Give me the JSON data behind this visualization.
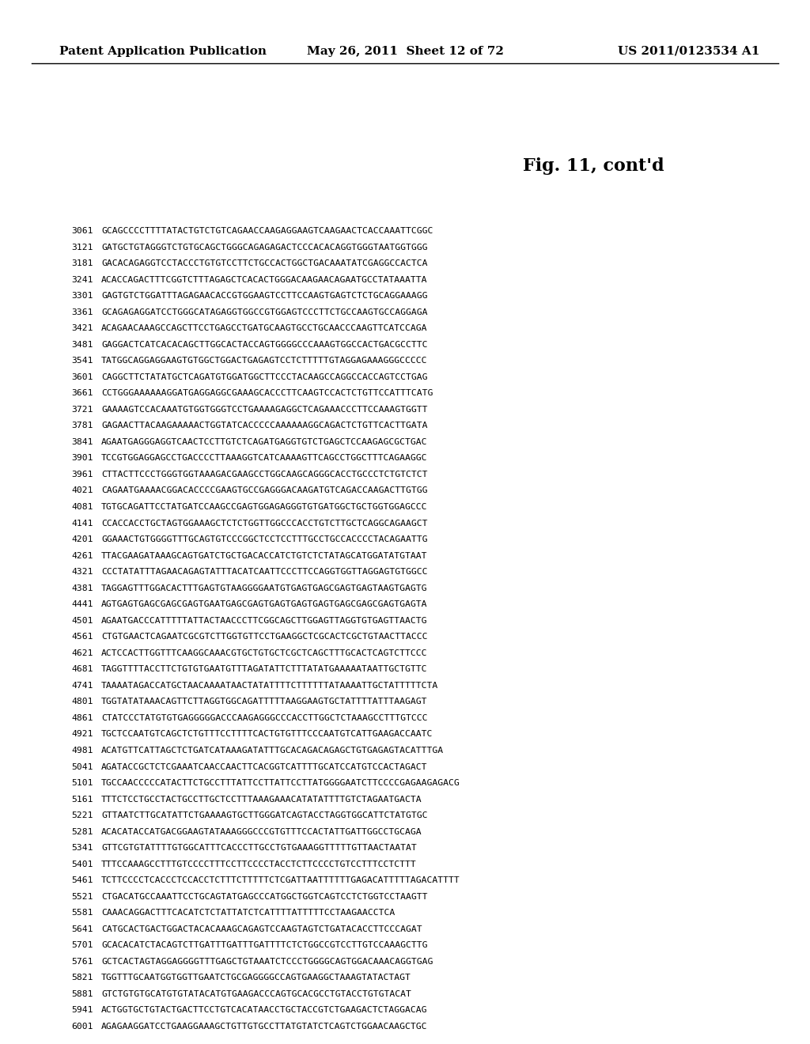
{
  "header_left": "Patent Application Publication",
  "header_center": "May 26, 2011  Sheet 12 of 72",
  "header_right": "US 2011/0123534 A1",
  "figure_title": "Fig. 11, cont'd",
  "background_color": "#ffffff",
  "header_fontsize": 11,
  "title_fontsize": 16,
  "sequence_fontsize": 8.2,
  "sequence_lines": [
    [
      "3061",
      "GCAGCCCCTTTTATACTGTCTGTCAGAACCAAGAGGAAGTCAAGAACTCACCAAATTCGGC"
    ],
    [
      "3121",
      "GATGCTGTAGGGTCTGTGCAGCTGGGCAGAGAGACTCCCACACAGGTGGGTAATGGTGGG"
    ],
    [
      "3181",
      "GACACAGAGGTCCTACCCTGTGTCCTTCTGCCACTGGCTGACAAATATCGAGGCCACTCA"
    ],
    [
      "3241",
      "ACACCAGACTTTCGGTCTTTAGAGCTCACACTGGGACAAGAACAGAATGCCTATAAATTA"
    ],
    [
      "3301",
      "GAGTGTCTGGATTTAGAGAACACCGTGGAAGTCCTTCCAAGTGAGTCTCTGCAGGAAAGG"
    ],
    [
      "3361",
      "GCAGAGAGGATCCTGGGCATAGAGGTGGCCGTGGAGTCCCTTCTGCCAAGTGCCAGGAGA"
    ],
    [
      "3421",
      "ACAGAACAAAGCCAGCTTCCTGAGCCTGATGCAAGTGCCTGCAACCCAAGTTCATCCAGA"
    ],
    [
      "3481",
      "GAGGACTCATCACACAGCTTGGCACTACCAGTGGGGCCCAAAGTGGCCACTGACGCCTTC"
    ],
    [
      "3541",
      "TATGGCAGGAGGAAGTGTGGCTGGACTGAGAGTCCTCTTTTTGTAGGAGAAAGGGCCCCC"
    ],
    [
      "3601",
      "CAGGCTTCTATATGCTCAGATGTGGATGGCTTCCCTACAAGCCAGGCCACCAGTCCTGAG"
    ],
    [
      "3661",
      "CCTGGGAAAAAAGGATGAGGAGGCGAAAGCACCCTTCAAGTCCACTCTGTTCCATTTCATG"
    ],
    [
      "3721",
      "GAAAAGTCCACAAATGTGGTGGGTCCTGAAAAGAGGCTCAGAAACCCTTCCAAAGTGGTT"
    ],
    [
      "3781",
      "GAGAACTTACAAGAAAAACTGGTATCACCCCCAAAAAAGGCAGACTCTGTTCACTTGATA"
    ],
    [
      "3841",
      "AGAATGAGGGAGGTCAACTCCTTGTCTCAGATGAGGTGTCTGAGCTCCAAGAGCGCTGAC"
    ],
    [
      "3901",
      "TCCGTGGAGGAGCCTGACCCCTTAAAGGTCATCAAAAGTTCAGCCTGGCTTTCAGAAGGC"
    ],
    [
      "3961",
      "CTTACTTCCCTGGGTGGTAAAGACGAAGCCTGGCAAGCAGGGCACCTGCCCTCTGTCTCT"
    ],
    [
      "4021",
      "CAGAATGAAAACGGACACCCCGAAGTGCCGAGGGACAAGATGTCAGACCAAGACTTGTGG"
    ],
    [
      "4081",
      "TGTGCAGATTCCTATGATCCAAGCCGAGTGGAGAGGGTGTGATGGCTGCTGGTGGAGCCC"
    ],
    [
      "4141",
      "CCACCACCTGCTAGTGGAAAGCTCTCTGGTTGGCCCACCTGTCTTGCTCAGGCAGAAGCT"
    ],
    [
      "4201",
      "GGAAACTGTGGGGTTTGCAGTGTCCCGGCTCCTCCTTTGCCTGCCACCCCTACAGAATTG"
    ],
    [
      "4261",
      "TTACGAAGATAAAGCAGTGATCTGCTGACACCATCTGTCTCTATAGCATGGATATGTAAT"
    ],
    [
      "4321",
      "CCCTATATTTAGAACAGAGTATTTACATCAATTCCCTTCCAGGTGGTTAGGAGTGTGGCC"
    ],
    [
      "4381",
      "TAGGAGTTTGGACACTTTGAGTGTAAGGGGAATGTGAGTGAGCGAGTGAGTAAGTGAGTG"
    ],
    [
      "4441",
      "AGTGAGTGAGCGAGCGAGTGAATGAGCGAGTGAGTGAGTGAGTGAGCGAGCGAGTGAGTA"
    ],
    [
      "4501",
      "AGAATGACCCATTTTTATTACTAACCCTTCGGCAGCTTGGAGTTAGGTGTGAGTTAACTG"
    ],
    [
      "4561",
      "CTGTGAACTCAGAATCGCGTCTTGGTGTTCCTGAAGGCTCGCACTCGCTGTAACTTACCC"
    ],
    [
      "4621",
      "ACTCCACTTGGTTTCAAGGCAAACGTGCTGTGCTCGCTCAGCTTTGCACTCAGTCTTCCC"
    ],
    [
      "4681",
      "TAGGTTTTACCTTCTGTGTGAATGTTTAGATATTCTTTATATGAAAAATAATTGCTGTTC"
    ],
    [
      "4741",
      "TAAAATAGACCATGCTAACAAAATAACTATATTTTCTTTTTTATAAAATTGCTATTTTTCTA"
    ],
    [
      "4801",
      "TGGTATATAAACAGTTCTTAGGTGGCAGATTTTTAAGGAAGTGCTATTTTATTTAAGAGT"
    ],
    [
      "4861",
      "CTATCCCTATGTGTGAGGGGGACCCAAGAGGGCCCACCTTGGCTCTAAAGCCTTTGTCCC"
    ],
    [
      "4921",
      "TGCTCCAATGTCAGCTCTGTTTCCTTTTCACTGTGTTTCCCAATGTCATTGAAGACCAATC"
    ],
    [
      "4981",
      "ACATGTTCATTAGCTCTGATCATAAAGATATTTGCACAGACAGAGCTGTGAGAGTACATTTGA"
    ],
    [
      "5041",
      "AGATACCGCTCTCGAAATCAACCAACTTCACGGTCATTTTGCATCCATGTCCACTAGACT"
    ],
    [
      "5101",
      "TGCCAACCCCCATACTTCTGCCTTTATTCCTTATTCCTTATGGGGAATCTTCCCCGAGAAGAGACG"
    ],
    [
      "5161",
      "TTTCTCCTGCCTACTGCCTTGCTCCTTTAAAGAAACATATATTTTGTCTAGAATGACTA"
    ],
    [
      "5221",
      "GTTAATCTTGCATATTCTGAAAAGTGCTTGGGATCAGTACCTAGGTGGCATTCTATGTGC"
    ],
    [
      "5281",
      "ACACATACCATGACGGAAGTATAAAGGGCCCGTGTTTCCACTATTGATTGGCCTGCAGA"
    ],
    [
      "5341",
      "GTTCGTGTATTTTGTGGCATTTCACCCTTGCCTGTGAAAGGTTTTTGTTAACTAATAT"
    ],
    [
      "5401",
      "TTTCCAAAGCCTTTGTCCCCTTTCCTTCCCCTACCTCTTCCCCTGTCCTTTCCTCTTT"
    ],
    [
      "5461",
      "TCTTCCCCTCACCCTCCACCTCTTTCTTTTTCTCGATTAATTTTTTGAGACATTTTTAGACATTTT"
    ],
    [
      "5521",
      "CTGACATGCCAAATTCCTGCAGTATGAGCCCATGGCTGGTCAGTCCTCTGGTCCTAAGTT"
    ],
    [
      "5581",
      "CAAACAGGACTTTCACATCTCTATTATCTCATTTTATTTTTCCTAAGAACCTCA"
    ],
    [
      "5641",
      "CATGCACTGACTGGACTACACAAAGCAGAGTCCAAGTAGTCTGATACACCTTCCCAGAT"
    ],
    [
      "5701",
      "GCACACATCTACAGTCTTGATTTGATTTGATTTTCTCTGGCCGTCCTTGTCCAAAGCTTG"
    ],
    [
      "5761",
      "GCTCACTAGTAGGAGGGGTTTGAGCTGTAAATCTCCCTGGGGCAGTGGACAAACAGGTGAG"
    ],
    [
      "5821",
      "TGGTTTGCAATGGTGGTTGAATCTGCGAGGGGCCAGTGAAGGCTAAAGTATACTAGT"
    ],
    [
      "5881",
      "GTCTGTGTGCATGTGTATACATGTGAAGACCCAGTGCACGCCTGTACCTGTGTACAT"
    ],
    [
      "5941",
      "ACTGGTGCTGTACTGACTTCCTGTCACATAACCTGCTACCGTCTGAAGACTCTAGGACAG"
    ],
    [
      "6001",
      "AGAGAAGGATCCTGAAGGAAAGCTGTTGTGCCTTATGTATCTCAGTCTGGAACAAGCTGC"
    ]
  ]
}
